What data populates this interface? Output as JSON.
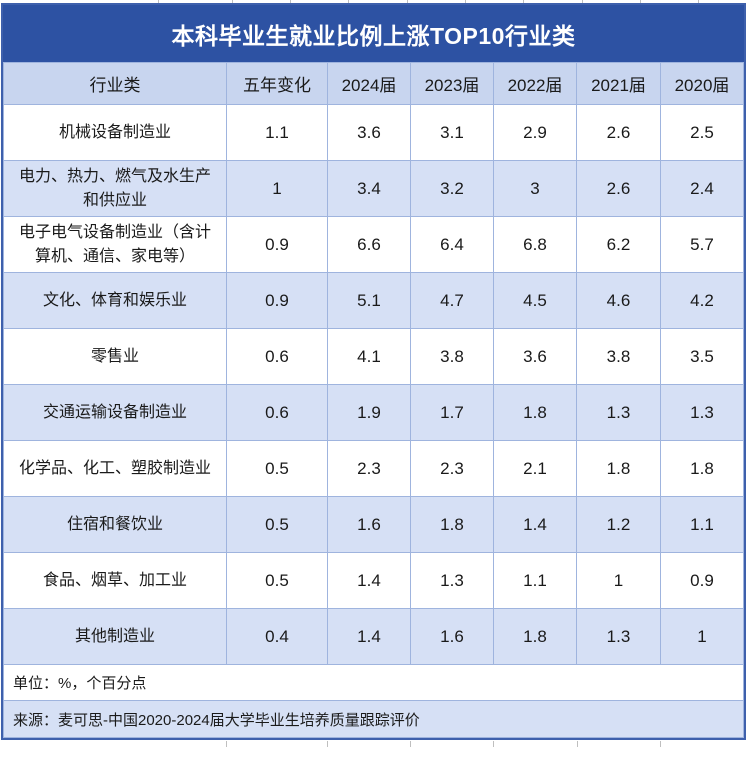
{
  "title": "本科毕业生就业比例上涨TOP10行业类",
  "chart_data": {
    "type": "table",
    "title": "本科毕业生就业比例上涨TOP10行业类",
    "columns": [
      "行业类",
      "五年变化",
      "2024届",
      "2023届",
      "2022届",
      "2021届",
      "2020届"
    ],
    "rows": [
      {
        "industry": "机械设备制造业",
        "values": [
          "1.1",
          "3.6",
          "3.1",
          "2.9",
          "2.6",
          "2.5"
        ]
      },
      {
        "industry": "电力、热力、燃气及水生产和供应业",
        "values": [
          "1",
          "3.4",
          "3.2",
          "3",
          "2.6",
          "2.4"
        ]
      },
      {
        "industry": "电子电气设备制造业（含计算机、通信、家电等）",
        "values": [
          "0.9",
          "6.6",
          "6.4",
          "6.8",
          "6.2",
          "5.7"
        ]
      },
      {
        "industry": "文化、体育和娱乐业",
        "values": [
          "0.9",
          "5.1",
          "4.7",
          "4.5",
          "4.6",
          "4.2"
        ]
      },
      {
        "industry": "零售业",
        "values": [
          "0.6",
          "4.1",
          "3.8",
          "3.6",
          "3.8",
          "3.5"
        ]
      },
      {
        "industry": "交通运输设备制造业",
        "values": [
          "0.6",
          "1.9",
          "1.7",
          "1.8",
          "1.3",
          "1.3"
        ]
      },
      {
        "industry": "化学品、化工、塑胶制造业",
        "values": [
          "0.5",
          "2.3",
          "2.3",
          "2.1",
          "1.8",
          "1.8"
        ]
      },
      {
        "industry": "住宿和餐饮业",
        "values": [
          "0.5",
          "1.6",
          "1.8",
          "1.4",
          "1.2",
          "1.1"
        ]
      },
      {
        "industry": "食品、烟草、加工业",
        "values": [
          "0.5",
          "1.4",
          "1.3",
          "1.1",
          "1",
          "0.9"
        ]
      },
      {
        "industry": "其他制造业",
        "values": [
          "0.4",
          "1.4",
          "1.6",
          "1.8",
          "1.3",
          "1"
        ]
      }
    ],
    "unit_note": "单位：%，个百分点",
    "source_note": "来源：麦可思-中国2020-2024届大学毕业生培养质量跟踪评价"
  },
  "colors": {
    "title_bar": "#2D52A3",
    "header_bg": "#C8D5EF",
    "row_alt_bg": "#D6E0F5",
    "border_inner": "#9FB4DE",
    "border_outer": "#3E60AC",
    "title_text": "#FFFFFF",
    "text": "#1A1A1A"
  }
}
